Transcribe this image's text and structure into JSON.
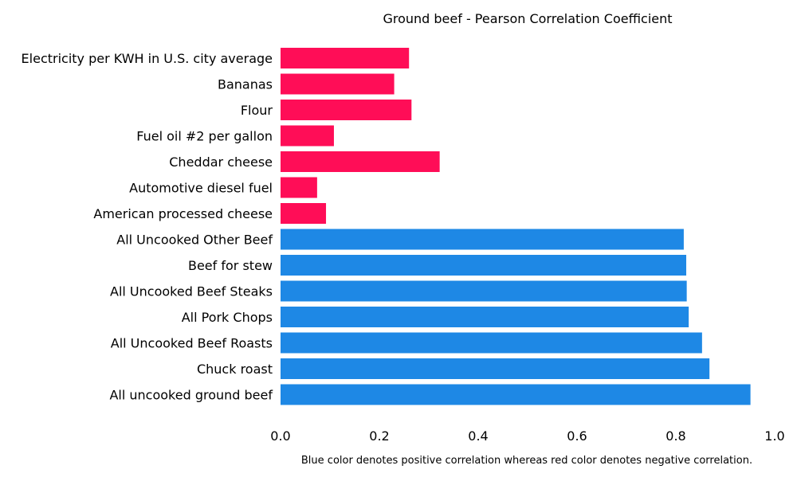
{
  "chart_data": {
    "type": "bar",
    "orientation": "horizontal",
    "title": "Ground beef - Pearson Correlation Coefficient",
    "caption": "Blue color denotes positive correlation whereas red color denotes negative correlation.",
    "xlabel": "",
    "ylabel": "",
    "xlim": [
      0.0,
      1.0
    ],
    "x_ticks": [
      "0.0",
      "0.2",
      "0.4",
      "0.6",
      "0.8",
      "1.0"
    ],
    "grid": false,
    "colors": {
      "positive": "#1e88e5",
      "negative": "#ff0d57"
    },
    "categories": [
      "Electricity per KWH in U.S. city average",
      "Bananas",
      "Flour",
      "Fuel oil #2 per gallon",
      "Cheddar cheese",
      "Automotive diesel fuel",
      "American processed cheese",
      "All Uncooked Other Beef",
      "Beef for stew",
      "All Uncooked Beef Steaks",
      "All Pork Chops",
      "All Uncooked Beef Roasts",
      "Chuck roast",
      "All uncooked ground beef"
    ],
    "values": [
      0.26,
      0.23,
      0.265,
      0.108,
      0.322,
      0.074,
      0.092,
      0.816,
      0.821,
      0.822,
      0.826,
      0.853,
      0.868,
      0.951
    ],
    "sign": [
      "negative",
      "negative",
      "negative",
      "negative",
      "negative",
      "negative",
      "negative",
      "positive",
      "positive",
      "positive",
      "positive",
      "positive",
      "positive",
      "positive"
    ]
  }
}
